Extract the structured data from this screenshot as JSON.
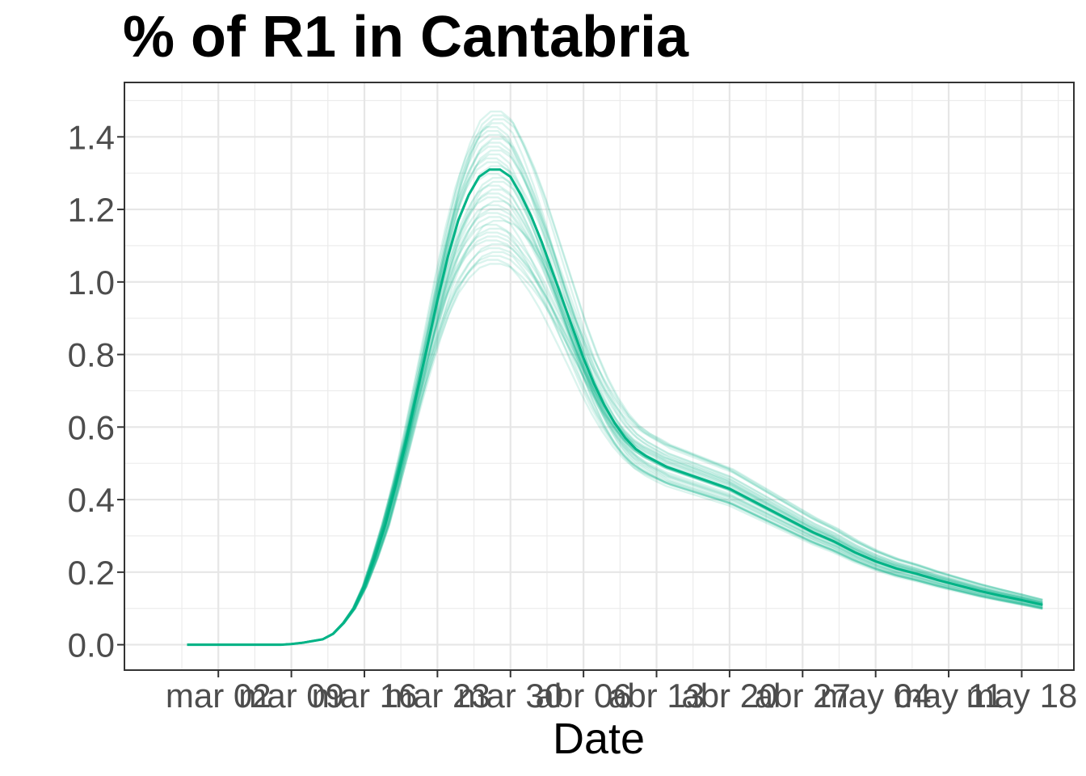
{
  "chart_data": {
    "type": "line",
    "title": "% of R1 in  Cantabria",
    "xlabel": "Date",
    "ylabel": "",
    "x_ticks": [
      "mar 02",
      "mar 09",
      "mar 16",
      "mar 23",
      "mar 30",
      "abr 06",
      "abr 13",
      "abr 20",
      "abr 27",
      "may 04",
      "may 11",
      "may 18"
    ],
    "y_ticks": [
      "0.0",
      "0.2",
      "0.4",
      "0.6",
      "0.8",
      "1.0",
      "1.2",
      "1.4"
    ],
    "ylim": [
      -0.07,
      1.55
    ],
    "xlim": [
      "2020-02-22",
      "2020-05-23"
    ],
    "grid": true,
    "line_color": "#00b386",
    "ensemble_count": 40,
    "ensemble_peak_range": [
      1.05,
      1.47
    ],
    "series": [
      {
        "x": [
          "2020-02-28",
          "2020-03-01",
          "2020-03-03",
          "2020-03-05",
          "2020-03-07",
          "2020-03-08",
          "2020-03-09",
          "2020-03-10",
          "2020-03-11",
          "2020-03-12",
          "2020-03-13",
          "2020-03-14",
          "2020-03-15",
          "2020-03-16",
          "2020-03-17",
          "2020-03-18",
          "2020-03-19",
          "2020-03-20",
          "2020-03-21",
          "2020-03-22",
          "2020-03-23",
          "2020-03-24",
          "2020-03-25",
          "2020-03-26",
          "2020-03-27",
          "2020-03-28",
          "2020-03-29",
          "2020-03-30",
          "2020-03-31",
          "2020-04-01",
          "2020-04-02",
          "2020-04-03",
          "2020-04-04",
          "2020-04-05",
          "2020-04-06",
          "2020-04-07",
          "2020-04-08",
          "2020-04-09",
          "2020-04-10",
          "2020-04-11",
          "2020-04-12",
          "2020-04-13",
          "2020-04-14",
          "2020-04-16",
          "2020-04-18",
          "2020-04-20",
          "2020-04-22",
          "2020-04-24",
          "2020-04-26",
          "2020-04-28",
          "2020-04-30",
          "2020-05-02",
          "2020-05-04",
          "2020-05-06",
          "2020-05-08",
          "2020-05-10",
          "2020-05-12",
          "2020-05-14",
          "2020-05-16",
          "2020-05-18",
          "2020-05-20"
        ],
        "values": [
          0.0,
          0.0,
          0.0,
          0.0,
          0.0,
          0.0,
          0.002,
          0.005,
          0.01,
          0.015,
          0.03,
          0.06,
          0.1,
          0.16,
          0.24,
          0.33,
          0.44,
          0.56,
          0.69,
          0.82,
          0.95,
          1.07,
          1.17,
          1.24,
          1.29,
          1.31,
          1.31,
          1.29,
          1.24,
          1.18,
          1.11,
          1.03,
          0.95,
          0.87,
          0.79,
          0.72,
          0.66,
          0.61,
          0.57,
          0.54,
          0.52,
          0.505,
          0.49,
          0.47,
          0.45,
          0.43,
          0.4,
          0.37,
          0.34,
          0.31,
          0.285,
          0.255,
          0.23,
          0.21,
          0.195,
          0.178,
          0.163,
          0.148,
          0.135,
          0.123,
          0.11
        ]
      }
    ]
  }
}
